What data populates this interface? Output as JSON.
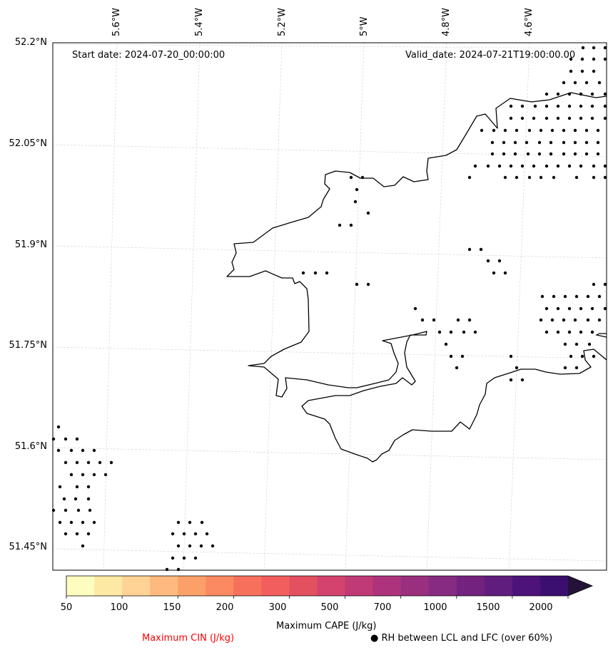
{
  "map": {
    "start_label": "Start date: 2024-07-20_00:00:00",
    "valid_label": "Valid_date: 2024-07-21T19:00:00.00",
    "lon_ticks": [
      "5.6°W",
      "5.4°W",
      "5.2°W",
      "5°W",
      "4.8°W",
      "4.6°W"
    ],
    "lat_ticks": [
      "52.2°N",
      "52.05°N",
      "51.9°N",
      "51.75°N",
      "51.6°N",
      "51.45°N"
    ],
    "lon_values": [
      -5.6,
      -5.4,
      -5.2,
      -5.0,
      -4.8,
      -4.6
    ],
    "lat_values": [
      52.2,
      52.05,
      51.9,
      51.75,
      51.6,
      51.45
    ],
    "gridline_color": "#d0d0d0",
    "coastline_color": "#000000"
  },
  "colorbar": {
    "title": "Maximum CAPE (J/kg)",
    "levels": [
      "50",
      "100",
      "150",
      "200",
      "300",
      "500",
      "700",
      "1000",
      "1500",
      "2000"
    ],
    "colors": [
      "#fcfdbf",
      "#fee9a4",
      "#fed395",
      "#fdb97e",
      "#fca06a",
      "#fb8961",
      "#f7705c",
      "#f25d5e",
      "#e3505f",
      "#d3436e",
      "#c03a76",
      "#ad347c",
      "#9a2f7f",
      "#872a81",
      "#73237f",
      "#601d7e",
      "#4e127b",
      "#3b0f70",
      "#241238"
    ],
    "extend": "max"
  },
  "legend": {
    "cin_label": "Maximum CIN (J/kg)",
    "cin_color": "#ff0000",
    "rh_marker": "●",
    "rh_label": "RH between LCL and LFC (over 60%)"
  }
}
